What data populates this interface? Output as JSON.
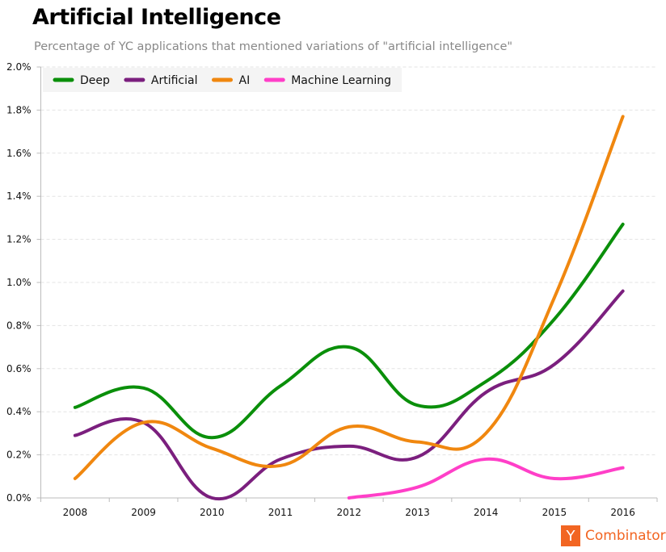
{
  "chart_data": {
    "type": "line",
    "title": "Artificial Intelligence",
    "subtitle": "Percentage of YC applications that mentioned variations of \"artificial intelligence\"",
    "xlabel": "",
    "ylabel": "",
    "categories": [
      "2008",
      "2009",
      "2010",
      "2011",
      "2012",
      "2013",
      "2014",
      "2015",
      "2016"
    ],
    "ylim": [
      0,
      2.0
    ],
    "yticks": [
      "0.0%",
      "0.2%",
      "0.4%",
      "0.6%",
      "0.8%",
      "1.0%",
      "1.2%",
      "1.4%",
      "1.6%",
      "1.8%",
      "2.0%"
    ],
    "grid": true,
    "legend_placement": "top-left",
    "series": [
      {
        "name": "Deep",
        "color": "#0a8f0a",
        "values": [
          0.42,
          0.51,
          0.28,
          0.52,
          0.7,
          0.43,
          0.54,
          0.83,
          1.27
        ]
      },
      {
        "name": "Artificial",
        "color": "#7b1f7e",
        "values": [
          0.29,
          0.35,
          0.0,
          0.18,
          0.24,
          0.19,
          0.49,
          0.62,
          0.96
        ]
      },
      {
        "name": "AI",
        "color": "#f0870f",
        "values": [
          0.09,
          0.35,
          0.23,
          0.15,
          0.33,
          0.26,
          0.3,
          0.93,
          1.77
        ]
      },
      {
        "name": "Machine Learning",
        "color": "#ff3fc8",
        "values": [
          null,
          null,
          null,
          null,
          0.0,
          0.05,
          0.18,
          0.09,
          0.14
        ]
      }
    ]
  },
  "logo": {
    "letter": "Y",
    "text": "Combinator",
    "color": "#f26522"
  }
}
